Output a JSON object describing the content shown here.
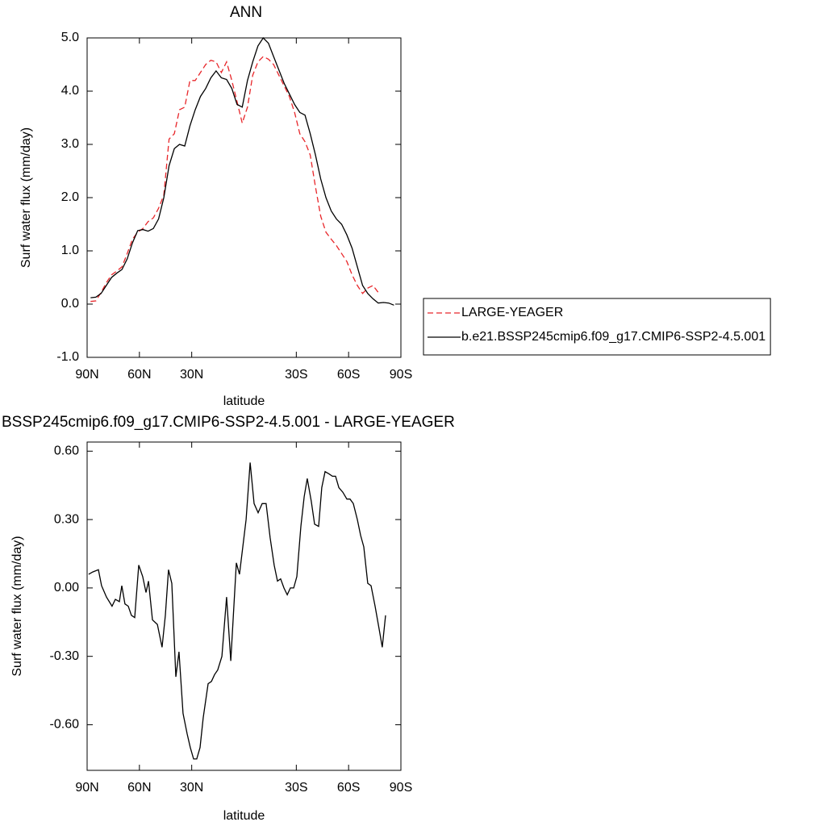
{
  "chart_data": [
    {
      "type": "line",
      "title": "ANN",
      "xlabel": "latitude",
      "ylabel": "Surf water flux (mm/day)",
      "x": [
        88,
        85,
        82,
        79,
        76,
        73,
        70,
        67,
        64,
        61,
        58,
        55,
        52,
        49,
        46,
        43,
        40,
        37,
        34,
        31,
        28,
        25,
        22,
        19,
        16,
        13,
        10,
        7,
        4,
        1,
        -2,
        -5,
        -8,
        -11,
        -14,
        -17,
        -20,
        -23,
        -26,
        -29,
        -32,
        -35,
        -38,
        -41,
        -44,
        -47,
        -50,
        -53,
        -56,
        -59,
        -62,
        -65,
        -68,
        -71,
        -74,
        -77,
        -80,
        -83,
        -86
      ],
      "series": [
        {
          "name": "LARGE-YEAGER",
          "color": "#e8262a",
          "line_style": "dashed",
          "values": [
            0.05,
            0.06,
            0.22,
            0.4,
            0.55,
            0.62,
            0.7,
            0.95,
            1.22,
            1.35,
            1.42,
            1.55,
            1.62,
            1.8,
            2.05,
            3.1,
            3.2,
            3.65,
            3.7,
            4.2,
            4.2,
            4.35,
            4.5,
            4.58,
            4.55,
            4.35,
            4.55,
            4.2,
            3.8,
            3.4,
            3.7,
            4.3,
            4.55,
            4.65,
            4.6,
            4.5,
            4.3,
            4.1,
            3.9,
            3.6,
            3.2,
            3.05,
            2.8,
            2.2,
            1.65,
            1.35,
            1.22,
            1.1,
            0.95,
            0.8,
            0.55,
            0.35,
            0.2,
            0.3,
            0.35,
            0.22,
            null,
            null,
            null
          ]
        },
        {
          "name": "b.e21.BSSP245cmip6.f09_g17.CMIP6-SSP2-4.5.001",
          "color": "#000000",
          "line_style": "solid",
          "values": [
            0.12,
            0.13,
            0.2,
            0.35,
            0.5,
            0.58,
            0.65,
            0.85,
            1.15,
            1.38,
            1.4,
            1.37,
            1.42,
            1.6,
            2.0,
            2.6,
            2.92,
            3.0,
            2.97,
            3.35,
            3.65,
            3.9,
            4.05,
            4.25,
            4.38,
            4.25,
            4.22,
            4.05,
            3.75,
            3.7,
            4.2,
            4.55,
            4.85,
            5.0,
            4.9,
            4.65,
            4.4,
            4.15,
            3.95,
            3.75,
            3.6,
            3.55,
            3.2,
            2.8,
            2.35,
            2.0,
            1.75,
            1.6,
            1.5,
            1.3,
            1.05,
            0.7,
            0.35,
            0.2,
            0.1,
            0.02,
            0.03,
            0.02,
            -0.02
          ]
        }
      ],
      "xlim": [
        90,
        -90
      ],
      "xticks": [
        {
          "value": 90,
          "label": "90N"
        },
        {
          "value": 60,
          "label": "60N"
        },
        {
          "value": 30,
          "label": "30N"
        },
        {
          "value": -30,
          "label": "30S"
        },
        {
          "value": -60,
          "label": "60S"
        },
        {
          "value": -90,
          "label": "90S"
        }
      ],
      "ylim": [
        -1,
        5
      ],
      "yticks": [
        {
          "value": -1,
          "label": "-1.0"
        },
        {
          "value": 0,
          "label": "0.0"
        },
        {
          "value": 1,
          "label": "1.0"
        },
        {
          "value": 2,
          "label": "2.0"
        },
        {
          "value": 3,
          "label": "3.0"
        },
        {
          "value": 4,
          "label": "4.0"
        },
        {
          "value": 5,
          "label": "5.0"
        }
      ],
      "legend": "right"
    },
    {
      "type": "line",
      "title": "BSSP245cmip6.f09_g17.CMIP6-SSP2-4.5.001 - LARGE-YEAGER",
      "xlabel": "latitude",
      "ylabel": "Surf water flux (mm/day)",
      "x": [
        89.1,
        86.8,
        83.5,
        81.7,
        78.9,
        75.7,
        73.8,
        71.5,
        70.1,
        68.3,
        66.4,
        64.6,
        62.7,
        60.4,
        58.1,
        56.2,
        54.8,
        52.5,
        49.7,
        47,
        45.1,
        43.3,
        41.4,
        39.1,
        37.3,
        35,
        32.6,
        30.8,
        28.9,
        27.1,
        25.2,
        23.4,
        20.6,
        18.7,
        16.9,
        15.1,
        12.7,
        10,
        7.6,
        4.4,
        2.6,
        0.7,
        -1.2,
        -3.5,
        -5.8,
        -8.1,
        -10.4,
        -12.7,
        -15,
        -17.3,
        -19.2,
        -21,
        -22.9,
        -24.8,
        -26.6,
        -28.5,
        -30.3,
        -32.6,
        -34.5,
        -36.3,
        -38.6,
        -40.5,
        -42.8,
        -44.6,
        -46.5,
        -48.8,
        -50.7,
        -52.5,
        -54.4,
        -56.7,
        -59,
        -60.8,
        -62.7,
        -65,
        -66.9,
        -68.7,
        -71,
        -72.9,
        -75.2,
        -77.5,
        -79.3,
        -81.2
      ],
      "series": [
        {
          "color": "#000000",
          "line_style": "solid",
          "values": [
            0.06,
            0.07,
            0.08,
            0.01,
            -0.04,
            -0.08,
            -0.05,
            -0.06,
            0.01,
            -0.07,
            -0.08,
            -0.12,
            -0.13,
            0.1,
            0.05,
            -0.02,
            0.03,
            -0.14,
            -0.16,
            -0.26,
            -0.12,
            0.08,
            0.02,
            -0.39,
            -0.28,
            -0.55,
            -0.64,
            -0.7,
            -0.75,
            -0.75,
            -0.7,
            -0.57,
            -0.42,
            -0.41,
            -0.38,
            -0.36,
            -0.3,
            -0.04,
            -0.32,
            0.11,
            0.06,
            0.18,
            0.3,
            0.55,
            0.37,
            0.33,
            0.37,
            0.37,
            0.22,
            0.1,
            0.03,
            0.04,
            0,
            -0.03,
            0,
            0,
            0.05,
            0.27,
            0.4,
            0.48,
            0.38,
            0.28,
            0.27,
            0.44,
            0.51,
            0.5,
            0.49,
            0.49,
            0.44,
            0.42,
            0.39,
            0.39,
            0.37,
            0.3,
            0.23,
            0.18,
            0.02,
            0.01,
            -0.08,
            -0.18,
            -0.26,
            -0.12
          ]
        }
      ],
      "xlim": [
        90,
        -90
      ],
      "xticks": [
        {
          "value": 90,
          "label": "90N"
        },
        {
          "value": 60,
          "label": "60N"
        },
        {
          "value": 30,
          "label": "30N"
        },
        {
          "value": -30,
          "label": "30S"
        },
        {
          "value": -60,
          "label": "60S"
        },
        {
          "value": -90,
          "label": "90S"
        }
      ],
      "ylim": [
        -0.8,
        0.64
      ],
      "yticks": [
        {
          "value": -0.6,
          "label": "-0.60"
        },
        {
          "value": -0.3,
          "label": "-0.30"
        },
        {
          "value": 0,
          "label": "0.00"
        },
        {
          "value": 0.3,
          "label": "0.30"
        },
        {
          "value": 0.6,
          "label": "0.60"
        }
      ]
    }
  ]
}
